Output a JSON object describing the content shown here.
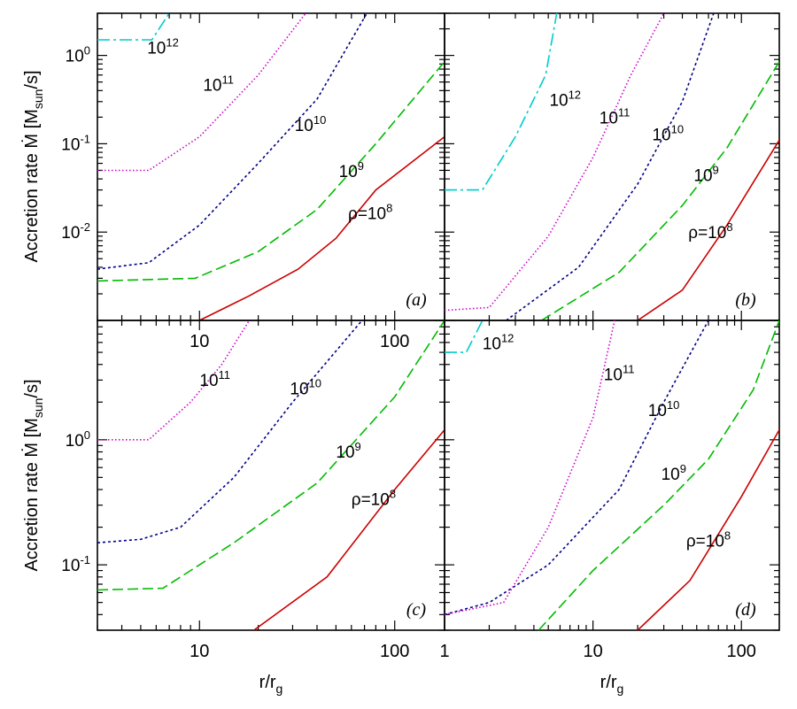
{
  "chart_data": {
    "type": "line",
    "scale": "log-log",
    "layout": "2x2 panels",
    "ylabel": "Accretion rate Ṁ [M_sun/s]",
    "xlabel": "r/r_g",
    "colors": {
      "rho_1e8": "#cc0000",
      "rho_1e9": "#00bb00",
      "rho_1e10": "#000088",
      "rho_1e11": "#cc00cc",
      "rho_1e12": "#00cccc"
    },
    "panels": [
      {
        "label": "(a)",
        "xlim": [
          3,
          180
        ],
        "ylim": [
          0.001,
          3
        ],
        "xticks": [
          {
            "v": 10,
            "t": "10"
          },
          {
            "v": 100,
            "t": "100"
          }
        ],
        "yticks": [
          {
            "v": 1,
            "base": "10",
            "exp": "0"
          },
          {
            "v": 0.1,
            "base": "10",
            "exp": "-1"
          },
          {
            "v": 0.01,
            "base": "10",
            "exp": "-2"
          }
        ],
        "series": [
          {
            "name": "ρ=10^8",
            "color": "rho_1e8",
            "dash": "",
            "points": [
              [
                10,
                0.001
              ],
              [
                18,
                0.0019
              ],
              [
                32,
                0.0038
              ],
              [
                50,
                0.0085
              ],
              [
                80,
                0.03
              ],
              [
                180,
                0.12
              ]
            ],
            "label": {
              "prefix": "ρ=",
              "base": "10",
              "exp": "8",
              "at": [
                75,
                0.014
              ]
            }
          },
          {
            "name": "10^9",
            "color": "rho_1e9",
            "dash": "12,5",
            "points": [
              [
                3,
                0.0028
              ],
              [
                9.5,
                0.003
              ],
              [
                20,
                0.006
              ],
              [
                40,
                0.018
              ],
              [
                80,
                0.1
              ],
              [
                180,
                0.85
              ]
            ],
            "label": {
              "prefix": "",
              "base": "10",
              "exp": "9",
              "at": [
                60,
                0.042
              ]
            }
          },
          {
            "name": "10^10",
            "color": "rho_1e10",
            "dash": "3,3",
            "points": [
              [
                3,
                0.0038
              ],
              [
                5.5,
                0.0045
              ],
              [
                10,
                0.012
              ],
              [
                20,
                0.06
              ],
              [
                40,
                0.32
              ],
              [
                72,
                3.0
              ]
            ],
            "label": {
              "prefix": "",
              "base": "10",
              "exp": "10",
              "at": [
                37,
                0.14
              ]
            }
          },
          {
            "name": "10^11",
            "color": "rho_1e11",
            "dash": "1.5,2.5",
            "points": [
              [
                3,
                0.05
              ],
              [
                5.5,
                0.05
              ],
              [
                10,
                0.12
              ],
              [
                20,
                0.6
              ],
              [
                35,
                3.0
              ]
            ],
            "label": {
              "prefix": "",
              "base": "10",
              "exp": "11",
              "at": [
                12.5,
                0.4
              ]
            }
          },
          {
            "name": "10^12",
            "color": "rho_1e12",
            "dash": "14,4,3,4",
            "points": [
              [
                3,
                1.5
              ],
              [
                5.7,
                1.5
              ],
              [
                7,
                3.0
              ]
            ],
            "label": {
              "prefix": "",
              "base": "10",
              "exp": "12",
              "at": [
                6.5,
                1.05
              ]
            }
          }
        ]
      },
      {
        "label": "(b)",
        "xlim": [
          1,
          180
        ],
        "ylim": [
          0.001,
          3
        ],
        "xticks": [],
        "yticks": [],
        "series": [
          {
            "name": "ρ=10^8",
            "color": "rho_1e8",
            "dash": "",
            "points": [
              [
                20,
                0.001
              ],
              [
                40,
                0.0022
              ],
              [
                80,
                0.012
              ],
              [
                180,
                0.11
              ]
            ],
            "label": {
              "prefix": "ρ=",
              "base": "10",
              "exp": "8",
              "at": [
                62,
                0.0085
              ]
            }
          },
          {
            "name": "10^9",
            "color": "rho_1e9",
            "dash": "12,5",
            "points": [
              [
                4.5,
                0.001
              ],
              [
                15,
                0.0035
              ],
              [
                40,
                0.02
              ],
              [
                80,
                0.09
              ],
              [
                180,
                0.85
              ]
            ],
            "label": {
              "prefix": "",
              "base": "10",
              "exp": "9",
              "at": [
                58,
                0.038
              ]
            }
          },
          {
            "name": "10^10",
            "color": "rho_1e10",
            "dash": "3,3",
            "points": [
              [
                2.6,
                0.001
              ],
              [
                8,
                0.004
              ],
              [
                20,
                0.035
              ],
              [
                40,
                0.3
              ],
              [
                65,
                3.0
              ]
            ],
            "label": {
              "prefix": "",
              "base": "10",
              "exp": "10",
              "at": [
                32,
                0.11
              ]
            }
          },
          {
            "name": "10^11",
            "color": "rho_1e11",
            "dash": "1.5,2.5",
            "points": [
              [
                1,
                0.0013
              ],
              [
                2,
                0.0014
              ],
              [
                5,
                0.009
              ],
              [
                10,
                0.07
              ],
              [
                18,
                0.6
              ],
              [
                30,
                3.0
              ]
            ],
            "label": {
              "prefix": "",
              "base": "10",
              "exp": "11",
              "at": [
                14,
                0.17
              ]
            }
          },
          {
            "name": "10^12",
            "color": "rho_1e12",
            "dash": "14,4,3,4",
            "points": [
              [
                1,
                0.03
              ],
              [
                1.8,
                0.03
              ],
              [
                3,
                0.12
              ],
              [
                4.8,
                0.6
              ],
              [
                5.7,
                3.0
              ]
            ],
            "label": {
              "prefix": "",
              "base": "10",
              "exp": "12",
              "at": [
                6.5,
                0.27
              ]
            }
          }
        ]
      },
      {
        "label": "(c)",
        "xlim": [
          3,
          180
        ],
        "ylim": [
          0.03,
          9
        ],
        "xticks": [
          {
            "v": 10,
            "t": "10"
          },
          {
            "v": 100,
            "t": "100"
          }
        ],
        "yticks": [
          {
            "v": 1,
            "base": "10",
            "exp": "0"
          },
          {
            "v": 0.1,
            "base": "10",
            "exp": "-1"
          }
        ],
        "series": [
          {
            "name": "ρ=10^8",
            "color": "rho_1e8",
            "dash": "",
            "points": [
              [
                19,
                0.03
              ],
              [
                45,
                0.08
              ],
              [
                100,
                0.4
              ],
              [
                180,
                1.2
              ]
            ],
            "label": {
              "prefix": "ρ=",
              "base": "10",
              "exp": "8",
              "at": [
                78,
                0.3
              ]
            }
          },
          {
            "name": "10^9",
            "color": "rho_1e9",
            "dash": "12,5",
            "points": [
              [
                3,
                0.063
              ],
              [
                6.5,
                0.065
              ],
              [
                15,
                0.15
              ],
              [
                40,
                0.45
              ],
              [
                100,
                2.2
              ],
              [
                180,
                9
              ]
            ],
            "label": {
              "prefix": "",
              "base": "10",
              "exp": "9",
              "at": [
                58,
                0.72
              ]
            }
          },
          {
            "name": "10^10",
            "color": "rho_1e10",
            "dash": "3,3",
            "points": [
              [
                3,
                0.15
              ],
              [
                5,
                0.16
              ],
              [
                8,
                0.2
              ],
              [
                15,
                0.5
              ],
              [
                30,
                2.0
              ],
              [
                68,
                9
              ]
            ],
            "label": {
              "prefix": "",
              "base": "10",
              "exp": "10",
              "at": [
                35,
                2.3
              ]
            }
          },
          {
            "name": "10^11",
            "color": "rho_1e11",
            "dash": "1.5,2.5",
            "points": [
              [
                3,
                1.0
              ],
              [
                5.5,
                1.0
              ],
              [
                9,
                2.0
              ],
              [
                13,
                4.0
              ],
              [
                18,
                9
              ]
            ],
            "label": {
              "prefix": "",
              "base": "10",
              "exp": "11",
              "at": [
                12,
                2.7
              ]
            }
          }
        ]
      },
      {
        "label": "(d)",
        "xlim": [
          1,
          180
        ],
        "ylim": [
          0.03,
          9
        ],
        "xticks": [
          {
            "v": 1,
            "t": "1"
          },
          {
            "v": 10,
            "t": "10"
          },
          {
            "v": 100,
            "t": "100"
          }
        ],
        "yticks": [],
        "series": [
          {
            "name": "ρ=10^8",
            "color": "rho_1e8",
            "dash": "",
            "points": [
              [
                20,
                0.03
              ],
              [
                45,
                0.075
              ],
              [
                100,
                0.35
              ],
              [
                180,
                1.2
              ]
            ],
            "label": {
              "prefix": "ρ=",
              "base": "10",
              "exp": "8",
              "at": [
                60,
                0.14
              ]
            }
          },
          {
            "name": "10^9",
            "color": "rho_1e9",
            "dash": "12,5",
            "points": [
              [
                4.3,
                0.03
              ],
              [
                10,
                0.09
              ],
              [
                30,
                0.3
              ],
              [
                60,
                0.7
              ],
              [
                120,
                2.5
              ],
              [
                180,
                9
              ]
            ],
            "label": {
              "prefix": "",
              "base": "10",
              "exp": "9",
              "at": [
                35,
                0.48
              ]
            }
          },
          {
            "name": "10^10",
            "color": "rho_1e10",
            "dash": "3,3",
            "points": [
              [
                1,
                0.04
              ],
              [
                2,
                0.05
              ],
              [
                5,
                0.1
              ],
              [
                15,
                0.4
              ],
              [
                30,
                2.0
              ],
              [
                60,
                9
              ]
            ],
            "label": {
              "prefix": "",
              "base": "10",
              "exp": "10",
              "at": [
                30,
                1.55
              ]
            }
          },
          {
            "name": "10^11",
            "color": "rho_1e11",
            "dash": "1.5,2.5",
            "points": [
              [
                1,
                0.04
              ],
              [
                2.5,
                0.05
              ],
              [
                5,
                0.2
              ],
              [
                10,
                1.5
              ],
              [
                14,
                9
              ]
            ],
            "label": {
              "prefix": "",
              "base": "10",
              "exp": "11",
              "at": [
                15,
                3.0
              ]
            }
          },
          {
            "name": "10^12",
            "color": "rho_1e12",
            "dash": "14,4,3,4",
            "points": [
              [
                1,
                5.0
              ],
              [
                1.4,
                5.0
              ],
              [
                1.8,
                9
              ]
            ],
            "label": {
              "prefix": "",
              "base": "10",
              "exp": "12",
              "at": [
                2.3,
                5.3
              ]
            }
          }
        ]
      }
    ]
  }
}
